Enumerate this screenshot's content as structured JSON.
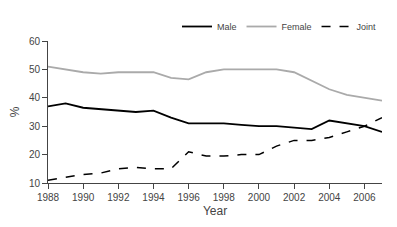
{
  "chart_data": {
    "type": "line",
    "xlabel": "Year",
    "ylabel": "%",
    "x": [
      1988,
      1989,
      1990,
      1991,
      1992,
      1993,
      1994,
      1995,
      1996,
      1997,
      1998,
      1999,
      2000,
      2001,
      2002,
      2003,
      2004,
      2005,
      2006,
      2007
    ],
    "series": [
      {
        "name": "Male",
        "color": "#000000",
        "line_style": "solid",
        "values": [
          37,
          38,
          36.5,
          36,
          35.5,
          35,
          35.5,
          33,
          31,
          31,
          31,
          30.5,
          30,
          30,
          29.5,
          29,
          32,
          31,
          30,
          28
        ]
      },
      {
        "name": "Female",
        "color": "#aaaaaa",
        "line_style": "solid",
        "values": [
          51,
          50,
          49,
          48.5,
          49,
          49,
          49,
          47,
          46.5,
          49,
          50,
          50,
          50,
          50,
          49,
          46,
          43,
          41,
          40,
          39
        ]
      },
      {
        "name": "Joint",
        "color": "#000000",
        "line_style": "dashed",
        "values": [
          11,
          12,
          13,
          13.5,
          15,
          15.5,
          15,
          15,
          21,
          19.5,
          19.5,
          20,
          20,
          23,
          25,
          25,
          26,
          28,
          30,
          33
        ]
      }
    ],
    "xlim": [
      1988,
      2007
    ],
    "xticks": [
      1988,
      1990,
      1992,
      1994,
      1996,
      1998,
      2000,
      2002,
      2004,
      2006
    ],
    "ylim": [
      10,
      60
    ],
    "yticks": [
      10,
      20,
      30,
      40,
      50,
      60
    ],
    "grid": false,
    "legend": "upper right"
  }
}
